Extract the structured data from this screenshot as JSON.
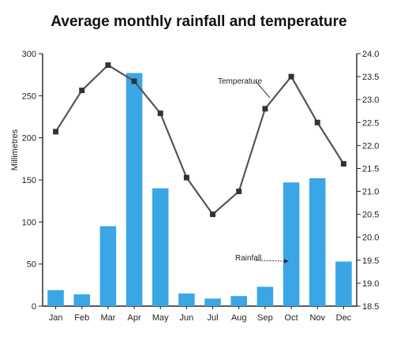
{
  "chart_data": {
    "type": "bar",
    "title": "Average monthly rainfall and temperature",
    "categories": [
      "Jan",
      "Feb",
      "Mar",
      "Apr",
      "May",
      "Jun",
      "Jul",
      "Aug",
      "Sep",
      "Oct",
      "Nov",
      "Dec"
    ],
    "ylabel": "Millimetres",
    "ylim": [
      0,
      300
    ],
    "y_ticks": [
      "0",
      "50",
      "100",
      "150",
      "200",
      "250",
      "300"
    ],
    "y2lim": [
      18.5,
      24.0
    ],
    "y2_ticks": [
      "18.5",
      "19.0",
      "19.5",
      "20.0",
      "20.5",
      "21.0",
      "21.5",
      "22.0",
      "22.5",
      "23.0",
      "23.5",
      "24.0"
    ],
    "grid": false,
    "series": [
      {
        "name": "Rainfall",
        "type": "bar",
        "axis": "left",
        "color": "#3aa6e6",
        "values": [
          19,
          14,
          95,
          277,
          140,
          15,
          9,
          12,
          23,
          147,
          152,
          53
        ]
      },
      {
        "name": "Temperature",
        "type": "line",
        "axis": "right",
        "color": "#333333",
        "values": [
          22.3,
          23.2,
          23.75,
          23.4,
          22.7,
          21.3,
          20.5,
          21.0,
          22.8,
          23.5,
          22.5,
          21.6
        ]
      }
    ],
    "annotations": [
      "Temperature",
      "Rainfall"
    ]
  }
}
